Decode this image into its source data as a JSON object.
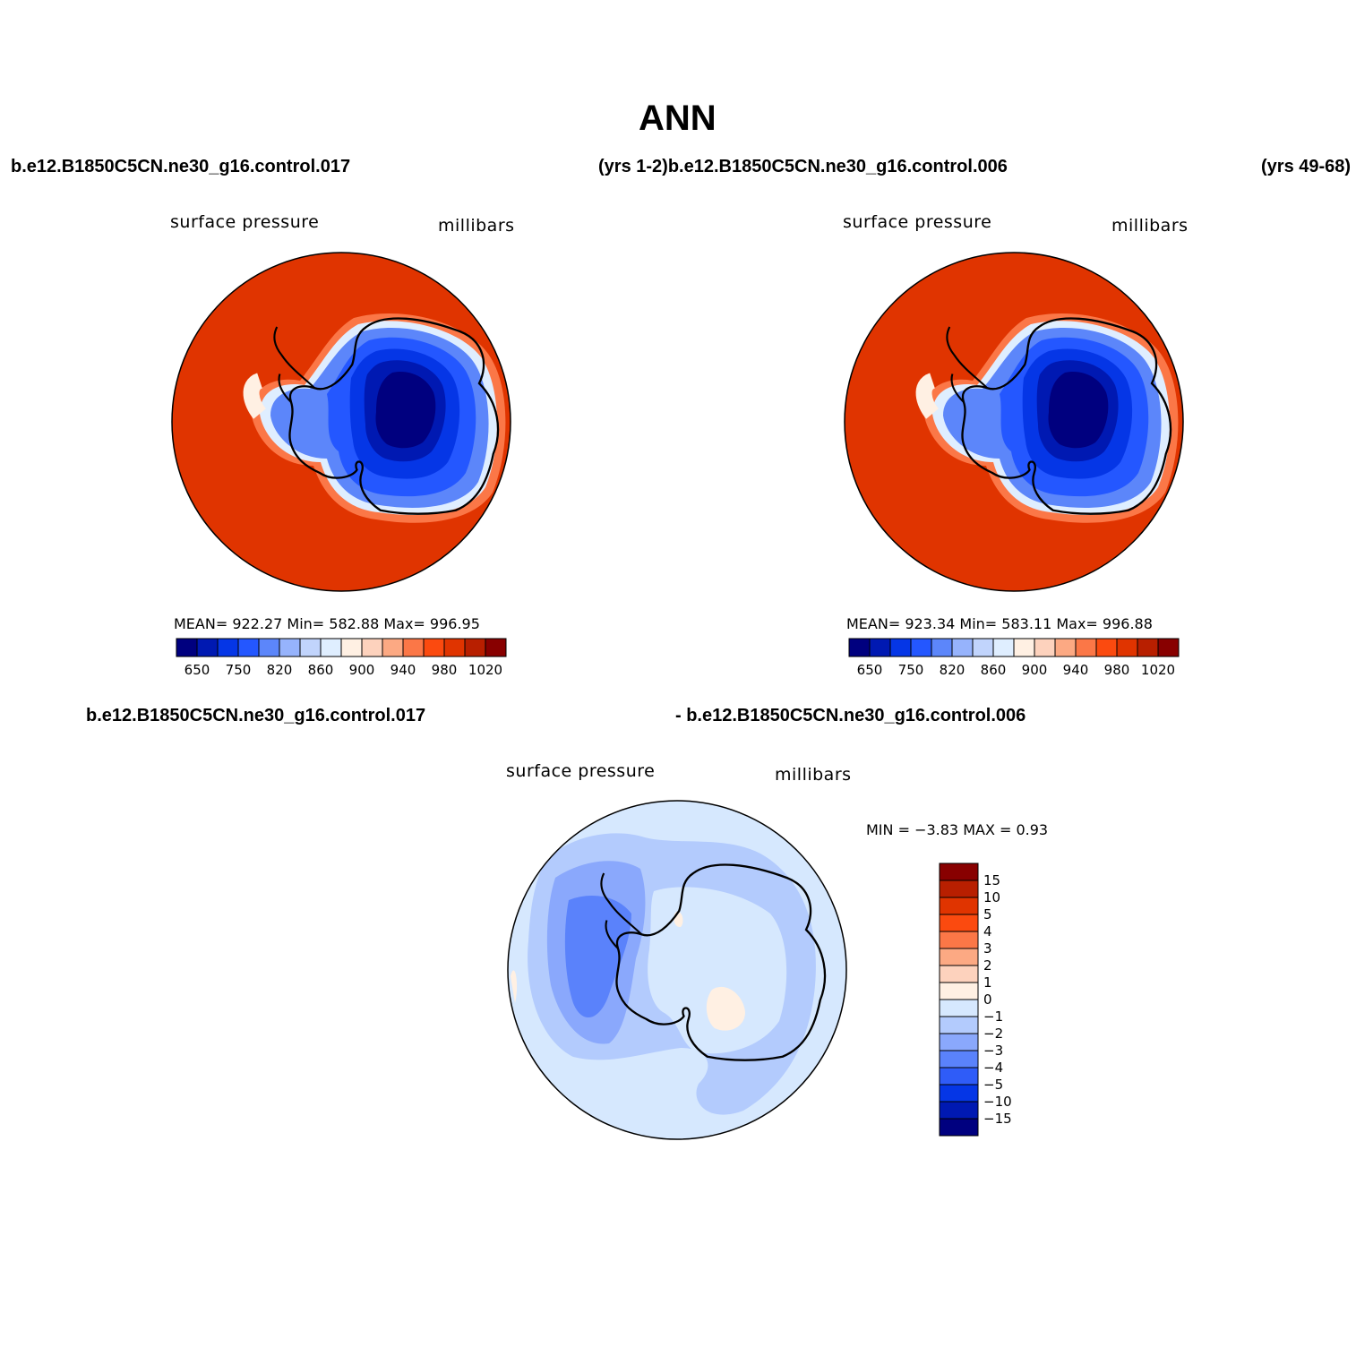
{
  "title": "ANN",
  "header": {
    "left_case": "b.e12.B1850C5CN.ne30_g16.control.017",
    "mid_years_case": "(yrs 1-2)b.e12.B1850C5CN.ne30_g16.control.006",
    "right_years": "(yrs 49-68)"
  },
  "panels": [
    {
      "variable": "surface pressure",
      "units": "millibars",
      "stats": "MEAN=  922.27   Min=  582.88   Max=  996.95"
    },
    {
      "variable": "surface pressure",
      "units": "millibars",
      "stats": "MEAN=  923.34   Min=  583.11   Max=  996.88"
    }
  ],
  "diff": {
    "case_a": "b.e12.B1850C5CN.ne30_g16.control.017",
    "case_b": "- b.e12.B1850C5CN.ne30_g16.control.006",
    "variable": "surface pressure",
    "units": "millibars",
    "minmax": "MIN =   −3.83  MAX =    0.93"
  },
  "chart_data": [
    {
      "type": "heatmap",
      "projection": "south polar stereographic",
      "colorbar_levels": [
        "650",
        "750",
        "820",
        "860",
        "900",
        "940",
        "980",
        "1020"
      ],
      "colors": [
        "#00007f",
        "#0019b2",
        "#0536e6",
        "#2457ff",
        "#5c86fa",
        "#96b3fc",
        "#c1d4fc",
        "#dfeeff",
        "#fff0e3",
        "#fdd2bd",
        "#fca983",
        "#fb7747",
        "#fb4a0f",
        "#e03400",
        "#b81f00",
        "#880000"
      ]
    },
    {
      "type": "heatmap",
      "projection": "south polar stereographic",
      "colorbar_levels": [
        "650",
        "750",
        "820",
        "860",
        "900",
        "940",
        "980",
        "1020"
      ],
      "colors": [
        "#00007f",
        "#0019b2",
        "#0536e6",
        "#2457ff",
        "#5c86fa",
        "#96b3fc",
        "#c1d4fc",
        "#dfeeff",
        "#fff0e3",
        "#fdd2bd",
        "#fca983",
        "#fb7747",
        "#fb4a0f",
        "#e03400",
        "#b81f00",
        "#880000"
      ]
    },
    {
      "type": "heatmap",
      "projection": "south polar stereographic",
      "colorbar_levels": [
        "15",
        "10",
        "5",
        "4",
        "3",
        "2",
        "1",
        "0",
        "−1",
        "−2",
        "−3",
        "−4",
        "−5",
        "−10",
        "−15"
      ],
      "colors": [
        "#880000",
        "#b81f00",
        "#e03400",
        "#fb4a0f",
        "#fb7747",
        "#fca983",
        "#fdd2bd",
        "#fff0e3",
        "#d6e8fe",
        "#b3cbfd",
        "#8aa8fc",
        "#5a82fb",
        "#2f5cf8",
        "#0536e6",
        "#0019b2",
        "#00007f"
      ]
    }
  ]
}
